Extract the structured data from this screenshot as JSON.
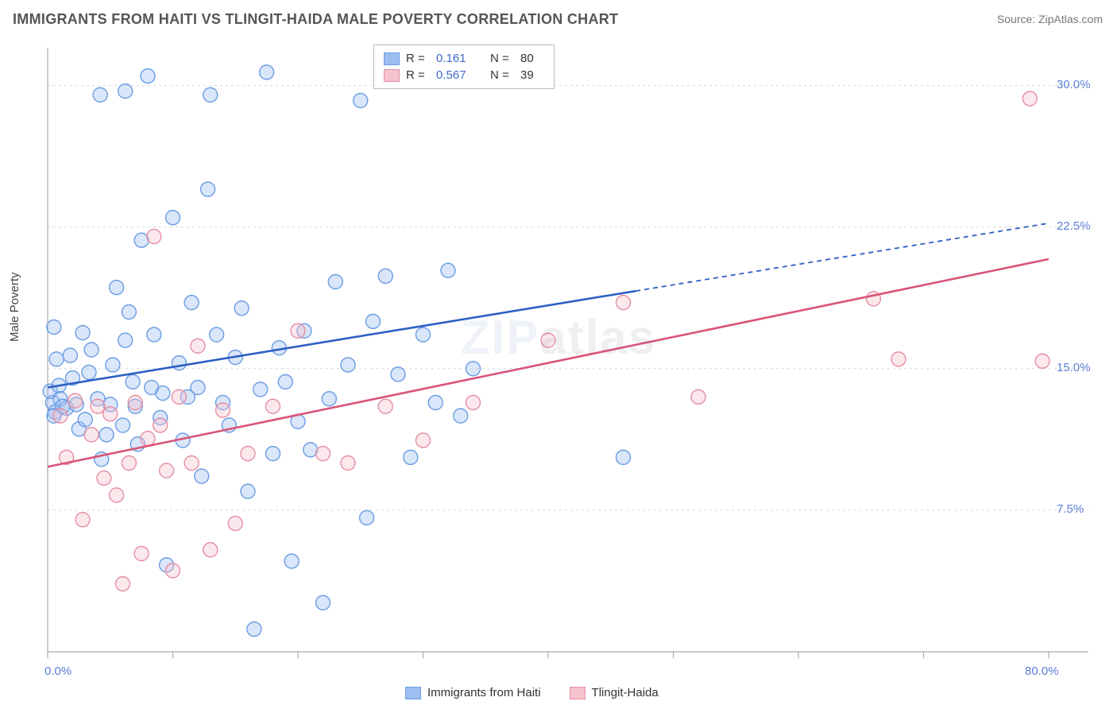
{
  "title": "IMMIGRANTS FROM HAITI VS TLINGIT-HAIDA MALE POVERTY CORRELATION CHART",
  "source": {
    "label": "Source:",
    "site": "ZipAtlas.com"
  },
  "y_axis_label": "Male Poverty",
  "watermark": {
    "part1": "ZIP",
    "part2": "atlas"
  },
  "chart": {
    "type": "scatter",
    "background_color": "#ffffff",
    "grid_color": "#d9d9d9",
    "axis_line_color": "#aaaaaa",
    "tick_color": "#aaaaaa",
    "xlim": [
      0,
      80
    ],
    "ylim": [
      0,
      32
    ],
    "x_ticks": [
      0,
      10,
      20,
      30,
      40,
      50,
      60,
      70,
      80
    ],
    "x_tick_labels_shown": {
      "0": "0.0%",
      "80": "80.0%"
    },
    "y_gridlines": [
      7.5,
      15.0,
      22.5,
      30.0
    ],
    "y_tick_labels": {
      "7.5": "7.5%",
      "15.0": "15.0%",
      "22.5": "22.5%",
      "30.0": "30.0%"
    },
    "marker_radius": 9,
    "marker_fill_opacity": 0.38,
    "marker_stroke_width": 1.4,
    "trend_line_width": 2.6,
    "dash_pattern": "6,5",
    "label_fontsize": 15,
    "label_color": "#5b7fd6"
  },
  "series": [
    {
      "name": "Immigrants from Haiti",
      "color_fill": "#9dbef0",
      "color_stroke": "#6b9de5",
      "trend_color": "#2d5fc4",
      "trend_start": [
        0,
        14.0
      ],
      "trend_end": [
        80,
        22.7
      ],
      "trend_solid_until_x": 47,
      "R": "0.161",
      "N": "80",
      "points": [
        [
          0.4,
          13.2
        ],
        [
          0.2,
          13.8
        ],
        [
          0.6,
          12.7
        ],
        [
          0.9,
          14.1
        ],
        [
          0.5,
          12.5
        ],
        [
          1.0,
          13.4
        ],
        [
          0.7,
          15.5
        ],
        [
          0.5,
          17.2
        ],
        [
          1.5,
          12.9
        ],
        [
          1.2,
          13.0
        ],
        [
          2.0,
          14.5
        ],
        [
          2.3,
          13.1
        ],
        [
          1.8,
          15.7
        ],
        [
          2.5,
          11.8
        ],
        [
          3.0,
          12.3
        ],
        [
          3.3,
          14.8
        ],
        [
          3.5,
          16.0
        ],
        [
          4.0,
          13.4
        ],
        [
          4.3,
          10.2
        ],
        [
          4.7,
          11.5
        ],
        [
          5.0,
          13.1
        ],
        [
          5.2,
          15.2
        ],
        [
          5.5,
          19.3
        ],
        [
          6.0,
          12.0
        ],
        [
          6.2,
          16.5
        ],
        [
          6.5,
          18.0
        ],
        [
          6.8,
          14.3
        ],
        [
          7.0,
          13.0
        ],
        [
          7.2,
          11.0
        ],
        [
          7.5,
          21.8
        ],
        [
          8.0,
          30.5
        ],
        [
          8.3,
          14.0
        ],
        [
          8.5,
          16.8
        ],
        [
          9.0,
          12.4
        ],
        [
          9.2,
          13.7
        ],
        [
          9.5,
          4.6
        ],
        [
          10.0,
          23.0
        ],
        [
          10.5,
          15.3
        ],
        [
          10.8,
          11.2
        ],
        [
          11.2,
          13.5
        ],
        [
          11.5,
          18.5
        ],
        [
          12.0,
          14.0
        ],
        [
          12.3,
          9.3
        ],
        [
          12.8,
          24.5
        ],
        [
          13.0,
          29.5
        ],
        [
          13.5,
          16.8
        ],
        [
          14.0,
          13.2
        ],
        [
          14.5,
          12.0
        ],
        [
          15.0,
          15.6
        ],
        [
          15.5,
          18.2
        ],
        [
          16.0,
          8.5
        ],
        [
          16.5,
          1.2
        ],
        [
          17.0,
          13.9
        ],
        [
          17.5,
          30.7
        ],
        [
          18.0,
          10.5
        ],
        [
          18.5,
          16.1
        ],
        [
          19.0,
          14.3
        ],
        [
          19.5,
          4.8
        ],
        [
          20.0,
          12.2
        ],
        [
          20.5,
          17.0
        ],
        [
          21.0,
          10.7
        ],
        [
          22.0,
          2.6
        ],
        [
          22.5,
          13.4
        ],
        [
          23.0,
          19.6
        ],
        [
          24.0,
          15.2
        ],
        [
          25.0,
          29.2
        ],
        [
          25.5,
          7.1
        ],
        [
          26.0,
          17.5
        ],
        [
          27.0,
          19.9
        ],
        [
          28.0,
          14.7
        ],
        [
          29.0,
          10.3
        ],
        [
          30.0,
          16.8
        ],
        [
          31.0,
          13.2
        ],
        [
          32.0,
          20.2
        ],
        [
          33.0,
          12.5
        ],
        [
          34.0,
          15.0
        ],
        [
          46.0,
          10.3
        ],
        [
          4.2,
          29.5
        ],
        [
          6.2,
          29.7
        ],
        [
          2.8,
          16.9
        ]
      ]
    },
    {
      "name": "Tlingit-Haida",
      "color_fill": "#f4c3ce",
      "color_stroke": "#e58fa4",
      "trend_color": "#d95477",
      "trend_start": [
        0,
        9.8
      ],
      "trend_end": [
        80,
        20.8
      ],
      "trend_solid_until_x": 80,
      "R": "0.567",
      "N": "39",
      "points": [
        [
          1.0,
          12.5
        ],
        [
          1.5,
          10.3
        ],
        [
          2.2,
          13.3
        ],
        [
          2.8,
          7.0
        ],
        [
          3.5,
          11.5
        ],
        [
          4.0,
          13.0
        ],
        [
          4.5,
          9.2
        ],
        [
          5.0,
          12.6
        ],
        [
          5.5,
          8.3
        ],
        [
          6.0,
          3.6
        ],
        [
          6.5,
          10.0
        ],
        [
          7.0,
          13.2
        ],
        [
          7.5,
          5.2
        ],
        [
          8.0,
          11.3
        ],
        [
          8.5,
          22.0
        ],
        [
          9.0,
          12.0
        ],
        [
          9.5,
          9.6
        ],
        [
          10.0,
          4.3
        ],
        [
          10.5,
          13.5
        ],
        [
          11.5,
          10.0
        ],
        [
          12.0,
          16.2
        ],
        [
          13.0,
          5.4
        ],
        [
          14.0,
          12.8
        ],
        [
          15.0,
          6.8
        ],
        [
          16.0,
          10.5
        ],
        [
          18.0,
          13.0
        ],
        [
          20.0,
          17.0
        ],
        [
          22.0,
          10.5
        ],
        [
          24.0,
          10.0
        ],
        [
          27.0,
          13.0
        ],
        [
          30.0,
          11.2
        ],
        [
          34.0,
          13.2
        ],
        [
          40.0,
          16.5
        ],
        [
          46.0,
          18.5
        ],
        [
          52.0,
          13.5
        ],
        [
          66.0,
          18.7
        ],
        [
          68.0,
          15.5
        ],
        [
          78.5,
          29.3
        ],
        [
          79.5,
          15.4
        ]
      ]
    }
  ],
  "legend_top": {
    "R_symbol": "R =",
    "N_symbol": "N ="
  },
  "legend_bottom": {
    "items": [
      "Immigrants from Haiti",
      "Tlingit-Haida"
    ]
  }
}
